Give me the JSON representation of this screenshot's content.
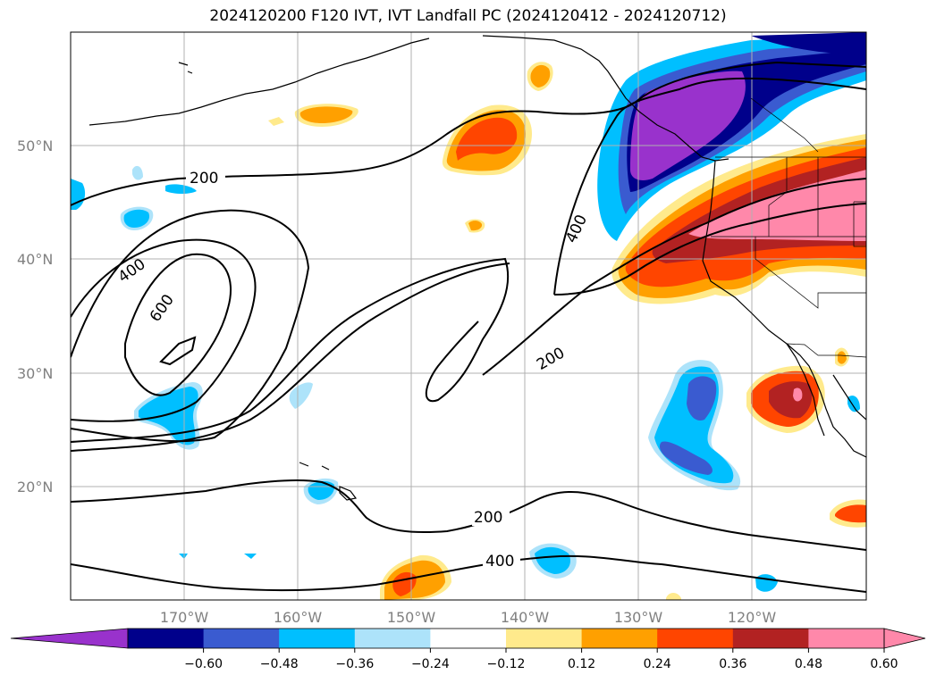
{
  "title": "2024120200 F120 IVT, IVT Landfall PC (2024120412 - 2024120712)",
  "map": {
    "lat_labels": [
      "50°N",
      "40°N",
      "30°N",
      "20°N"
    ],
    "lon_labels": [
      "170°W",
      "160°W",
      "150°W",
      "140°W",
      "130°W",
      "120°W"
    ],
    "contour_labels": [
      "200",
      "400",
      "600",
      "400",
      "200",
      "200",
      "400"
    ]
  },
  "colorbar": {
    "ticks": [
      "−0.60",
      "−0.48",
      "−0.36",
      "−0.24",
      "−0.12",
      "0.12",
      "0.24",
      "0.36",
      "0.48",
      "0.60"
    ],
    "colors": [
      "#9932CC",
      "#00008B",
      "#3A5BD0",
      "#00BFFF",
      "#ADE3FA",
      "#FFFFFF",
      "#FFEA8C",
      "#FFA000",
      "#FF4500",
      "#B22222",
      "#FF88AA",
      "#FF88AA"
    ]
  }
}
